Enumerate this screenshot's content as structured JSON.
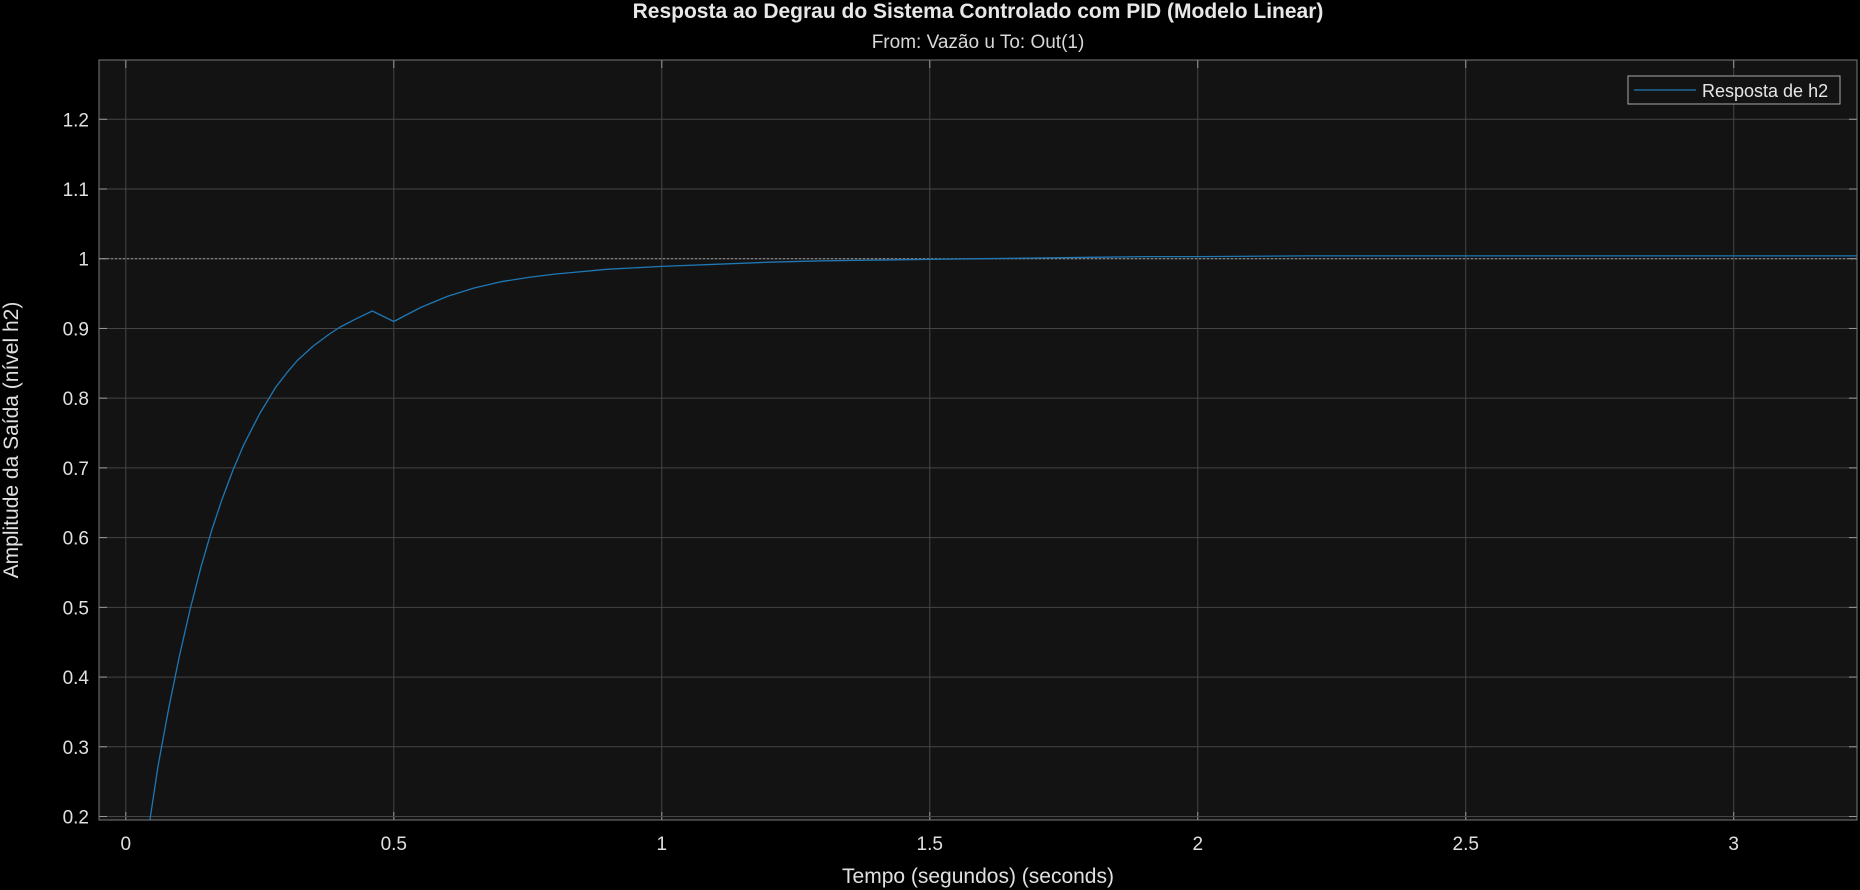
{
  "chart_data": {
    "type": "line",
    "title": "Resposta ao Degrau do Sistema Controlado com PID (Modelo Linear)",
    "subtitle": "From: Vazão u  To: Out(1)",
    "xlabel": "Tempo (segundos) (seconds)",
    "ylabel": "Amplitude da Saída (nível h2)",
    "xlim": [
      -0.05,
      3.23
    ],
    "ylim": [
      0.195,
      1.285
    ],
    "x_ticks": [
      0,
      0.5,
      1,
      1.5,
      2,
      2.5,
      3
    ],
    "x_tick_labels": [
      "0",
      "0.5",
      "1",
      "1.5",
      "2",
      "2.5",
      "3"
    ],
    "y_ticks": [
      0.2,
      0.3,
      0.4,
      0.5,
      0.6,
      0.7,
      0.8,
      0.9,
      1.0,
      1.1,
      1.2
    ],
    "y_tick_labels": [
      "0.2",
      "0.3",
      "0.4",
      "0.5",
      "0.6",
      "0.7",
      "0.8",
      "0.9",
      "1",
      "1.1",
      "1.2"
    ],
    "grid": true,
    "legend_position": "top-right",
    "reference_line": 1.0,
    "series": [
      {
        "name": "Resposta de h2",
        "color": "#1f77b4",
        "x": [
          0.045,
          0.06,
          0.08,
          0.1,
          0.12,
          0.14,
          0.16,
          0.18,
          0.2,
          0.22,
          0.25,
          0.28,
          0.3,
          0.32,
          0.35,
          0.38,
          0.4,
          0.43,
          0.46,
          0.5,
          0.55,
          0.6,
          0.65,
          0.7,
          0.75,
          0.8,
          0.9,
          1.0,
          1.1,
          1.2,
          1.3,
          1.4,
          1.5,
          1.6,
          1.7,
          1.8,
          1.9,
          2.0,
          2.2,
          2.4,
          2.6,
          2.8,
          3.0,
          3.23
        ],
        "y": [
          0.195,
          0.272,
          0.355,
          0.43,
          0.497,
          0.557,
          0.61,
          0.656,
          0.697,
          0.733,
          0.778,
          0.816,
          0.836,
          0.854,
          0.875,
          0.892,
          0.902,
          0.914,
          0.925,
          0.91,
          0.93,
          0.946,
          0.958,
          0.967,
          0.973,
          0.978,
          0.985,
          0.989,
          0.992,
          0.995,
          0.997,
          0.998,
          0.999,
          1.0,
          1.001,
          1.002,
          1.003,
          1.003,
          1.004,
          1.004,
          1.004,
          1.004,
          1.004,
          1.004
        ]
      }
    ]
  }
}
